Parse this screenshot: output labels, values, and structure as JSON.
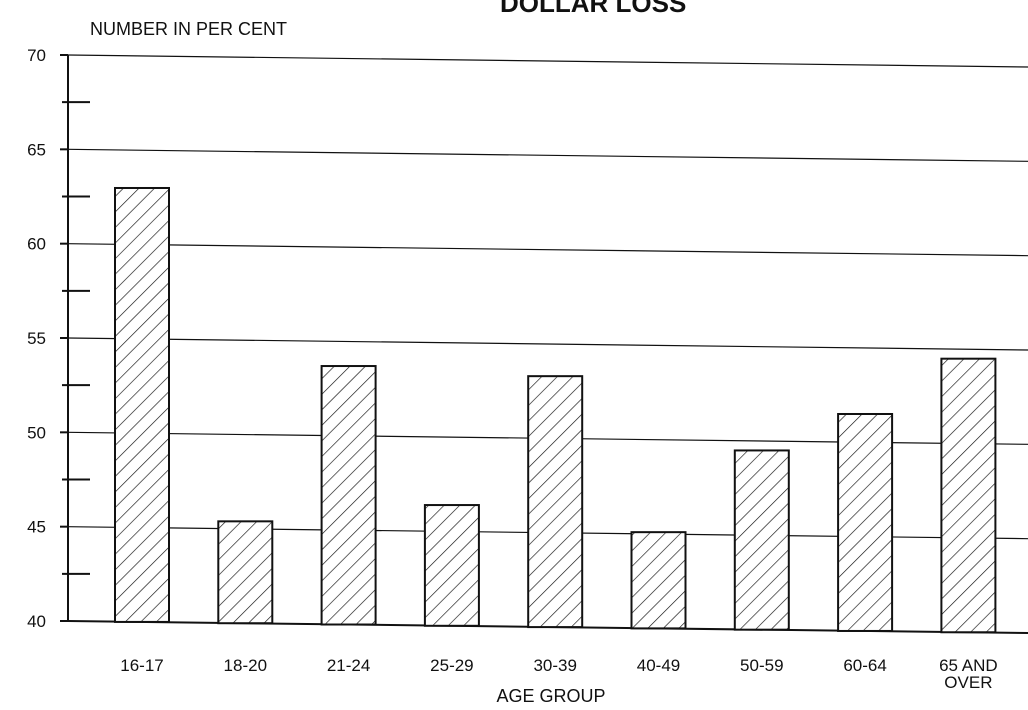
{
  "chart_data": {
    "type": "bar",
    "title_partial": "DOLLAR LOSS",
    "ylabel": "NUMBER IN PER CENT",
    "xlabel": "AGE GROUP",
    "categories": [
      "16-17",
      "18-20",
      "21-24",
      "25-29",
      "30-39",
      "40-49",
      "50-59",
      "60-64",
      "65 AND OVER"
    ],
    "category_lines": [
      [
        "16-17"
      ],
      [
        "18-20"
      ],
      [
        "21-24"
      ],
      [
        "25-29"
      ],
      [
        "30-39"
      ],
      [
        "40-49"
      ],
      [
        "50-59"
      ],
      [
        "60-64"
      ],
      [
        "65 AND",
        "OVER"
      ]
    ],
    "values": [
      63.0,
      45.4,
      53.7,
      46.4,
      53.3,
      45.1,
      49.5,
      51.5,
      54.5
    ],
    "ylim": [
      40,
      70
    ],
    "yticks": [
      40,
      45,
      50,
      55,
      60,
      65,
      70
    ],
    "grid": true,
    "bar_fill": "diagonal-hatch",
    "colors": {
      "ink": "#111111",
      "background": "#ffffff"
    }
  }
}
